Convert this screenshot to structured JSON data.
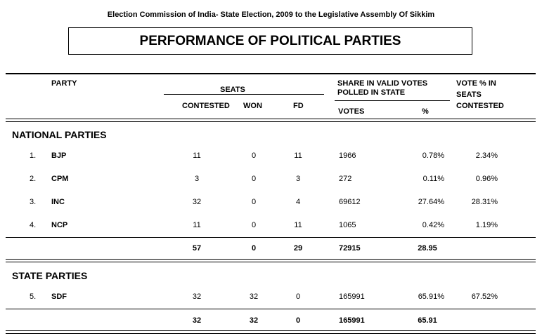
{
  "header": {
    "top_title": "Election Commission of India- State Election, 2009 to the Legislative Assembly Of  Sikkim",
    "box_title": "PERFORMANCE OF POLITICAL PARTIES"
  },
  "columns": {
    "party": "PARTY",
    "seats": "SEATS",
    "contested": "CONTESTED",
    "won": "WON",
    "fd": "FD",
    "share_line1": "SHARE IN VALID VOTES",
    "share_line2": "POLLED IN STATE",
    "votes": "VOTES",
    "percent": "%",
    "vote_pct_line1": "VOTE % IN",
    "vote_pct_line2": "SEATS",
    "vote_pct_line3": "CONTESTED"
  },
  "national": {
    "title": "NATIONAL PARTIES",
    "rows": [
      {
        "no": "1.",
        "party": "BJP",
        "contested": "11",
        "won": "0",
        "fd": "11",
        "votes": "1966",
        "pct": "0.78%",
        "seat_pct": "2.34%"
      },
      {
        "no": "2.",
        "party": "CPM",
        "contested": "3",
        "won": "0",
        "fd": "3",
        "votes": "272",
        "pct": "0.11%",
        "seat_pct": "0.96%"
      },
      {
        "no": "3.",
        "party": "INC",
        "contested": "32",
        "won": "0",
        "fd": "4",
        "votes": "69612",
        "pct": "27.64%",
        "seat_pct": "28.31%"
      },
      {
        "no": "4.",
        "party": "NCP",
        "contested": "11",
        "won": "0",
        "fd": "11",
        "votes": "1065",
        "pct": "0.42%",
        "seat_pct": "1.19%"
      }
    ],
    "total": {
      "contested": "57",
      "won": "0",
      "fd": "29",
      "votes": "72915",
      "pct": "28.95"
    }
  },
  "state": {
    "title": "STATE PARTIES",
    "rows": [
      {
        "no": "5.",
        "party": "SDF",
        "contested": "32",
        "won": "32",
        "fd": "0",
        "votes": "165991",
        "pct": "65.91%",
        "seat_pct": "67.52%"
      }
    ],
    "total": {
      "contested": "32",
      "won": "32",
      "fd": "0",
      "votes": "165991",
      "pct": "65.91"
    }
  }
}
